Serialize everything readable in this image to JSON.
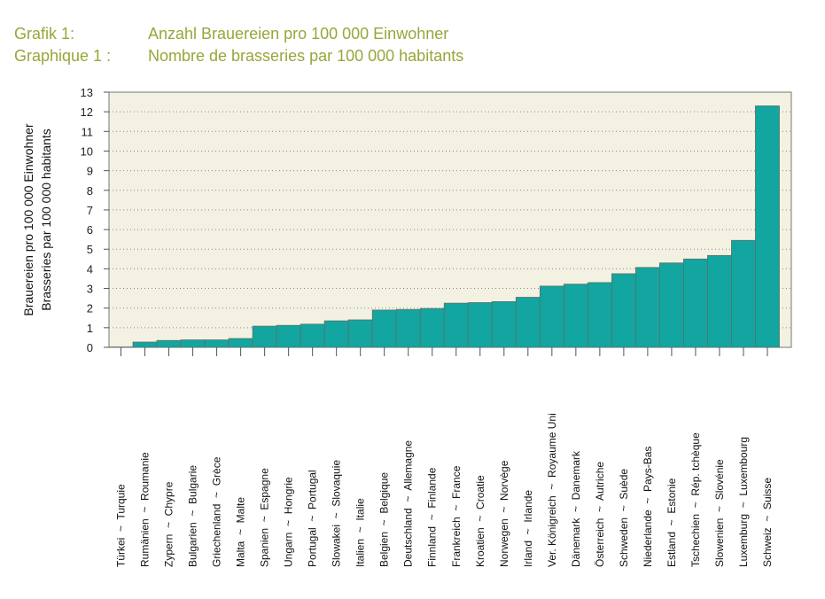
{
  "header": {
    "label_de": "Grafik 1:",
    "title_de": "Anzahl Brauereien pro 100 000 Einwohner",
    "label_fr": "Graphique 1 :",
    "title_fr": "Nombre de brasseries par 100 000 habitants"
  },
  "colors": {
    "accent_title": "#9aa53a",
    "bar": "#13a5a0",
    "plot_background": "#f3f2e2"
  },
  "chart_data": {
    "type": "bar",
    "title": "Anzahl Brauereien pro 100 000 Einwohner / Nombre de brasseries par 100 000 habitants",
    "xlabel": "",
    "ylabel_lines": [
      "Brauereien pro 100 000 Einwohner",
      "Brasseries par 100 000 habitants"
    ],
    "ylim": [
      0,
      13
    ],
    "yticks": [
      0,
      1,
      2,
      3,
      4,
      5,
      6,
      7,
      8,
      9,
      10,
      11,
      12,
      13
    ],
    "grid": "horizontal dotted",
    "legend": "none",
    "categories": [
      "Türkei ~ Turquie",
      "Rumänien ~ Roumanie",
      "Zypern ~ Chypre",
      "Bulgarien ~ Bulgarie",
      "Griechenland ~ Grèce",
      "Malta ~ Malte",
      "Spanien ~ Espagne",
      "Ungarn ~ Hongrie",
      "Portugal ~ Portugal",
      "Slowakei ~ Slovaquie",
      "Italien ~ Italie",
      "Belgien ~ Belgique",
      "Deutschland ~ Allemagne",
      "Finnland ~ Finlande",
      "Frankreich ~ France",
      "Kroatien ~ Croatie",
      "Norwegen ~ Norvège",
      "Irland ~ Irlande",
      "Ver. Königreich ~ Royaume Uni",
      "Dänemark ~ Danemark",
      "Österreich ~ Autriche",
      "Schweden ~ Suède",
      "Niederlande ~ Pays-Bas",
      "Estland ~ Estonie",
      "Tschechien ~ Rép. tchèque",
      "Slowenien ~ Slovénie",
      "Luxemburg ~ Luxembourg",
      "Schweiz ~ Suisse"
    ],
    "values": [
      0.02,
      0.27,
      0.35,
      0.38,
      0.38,
      0.45,
      1.08,
      1.12,
      1.18,
      1.35,
      1.4,
      1.9,
      1.93,
      1.98,
      2.25,
      2.28,
      2.33,
      2.55,
      3.12,
      3.22,
      3.3,
      3.75,
      4.07,
      4.3,
      4.5,
      4.68,
      5.45,
      12.3
    ]
  }
}
